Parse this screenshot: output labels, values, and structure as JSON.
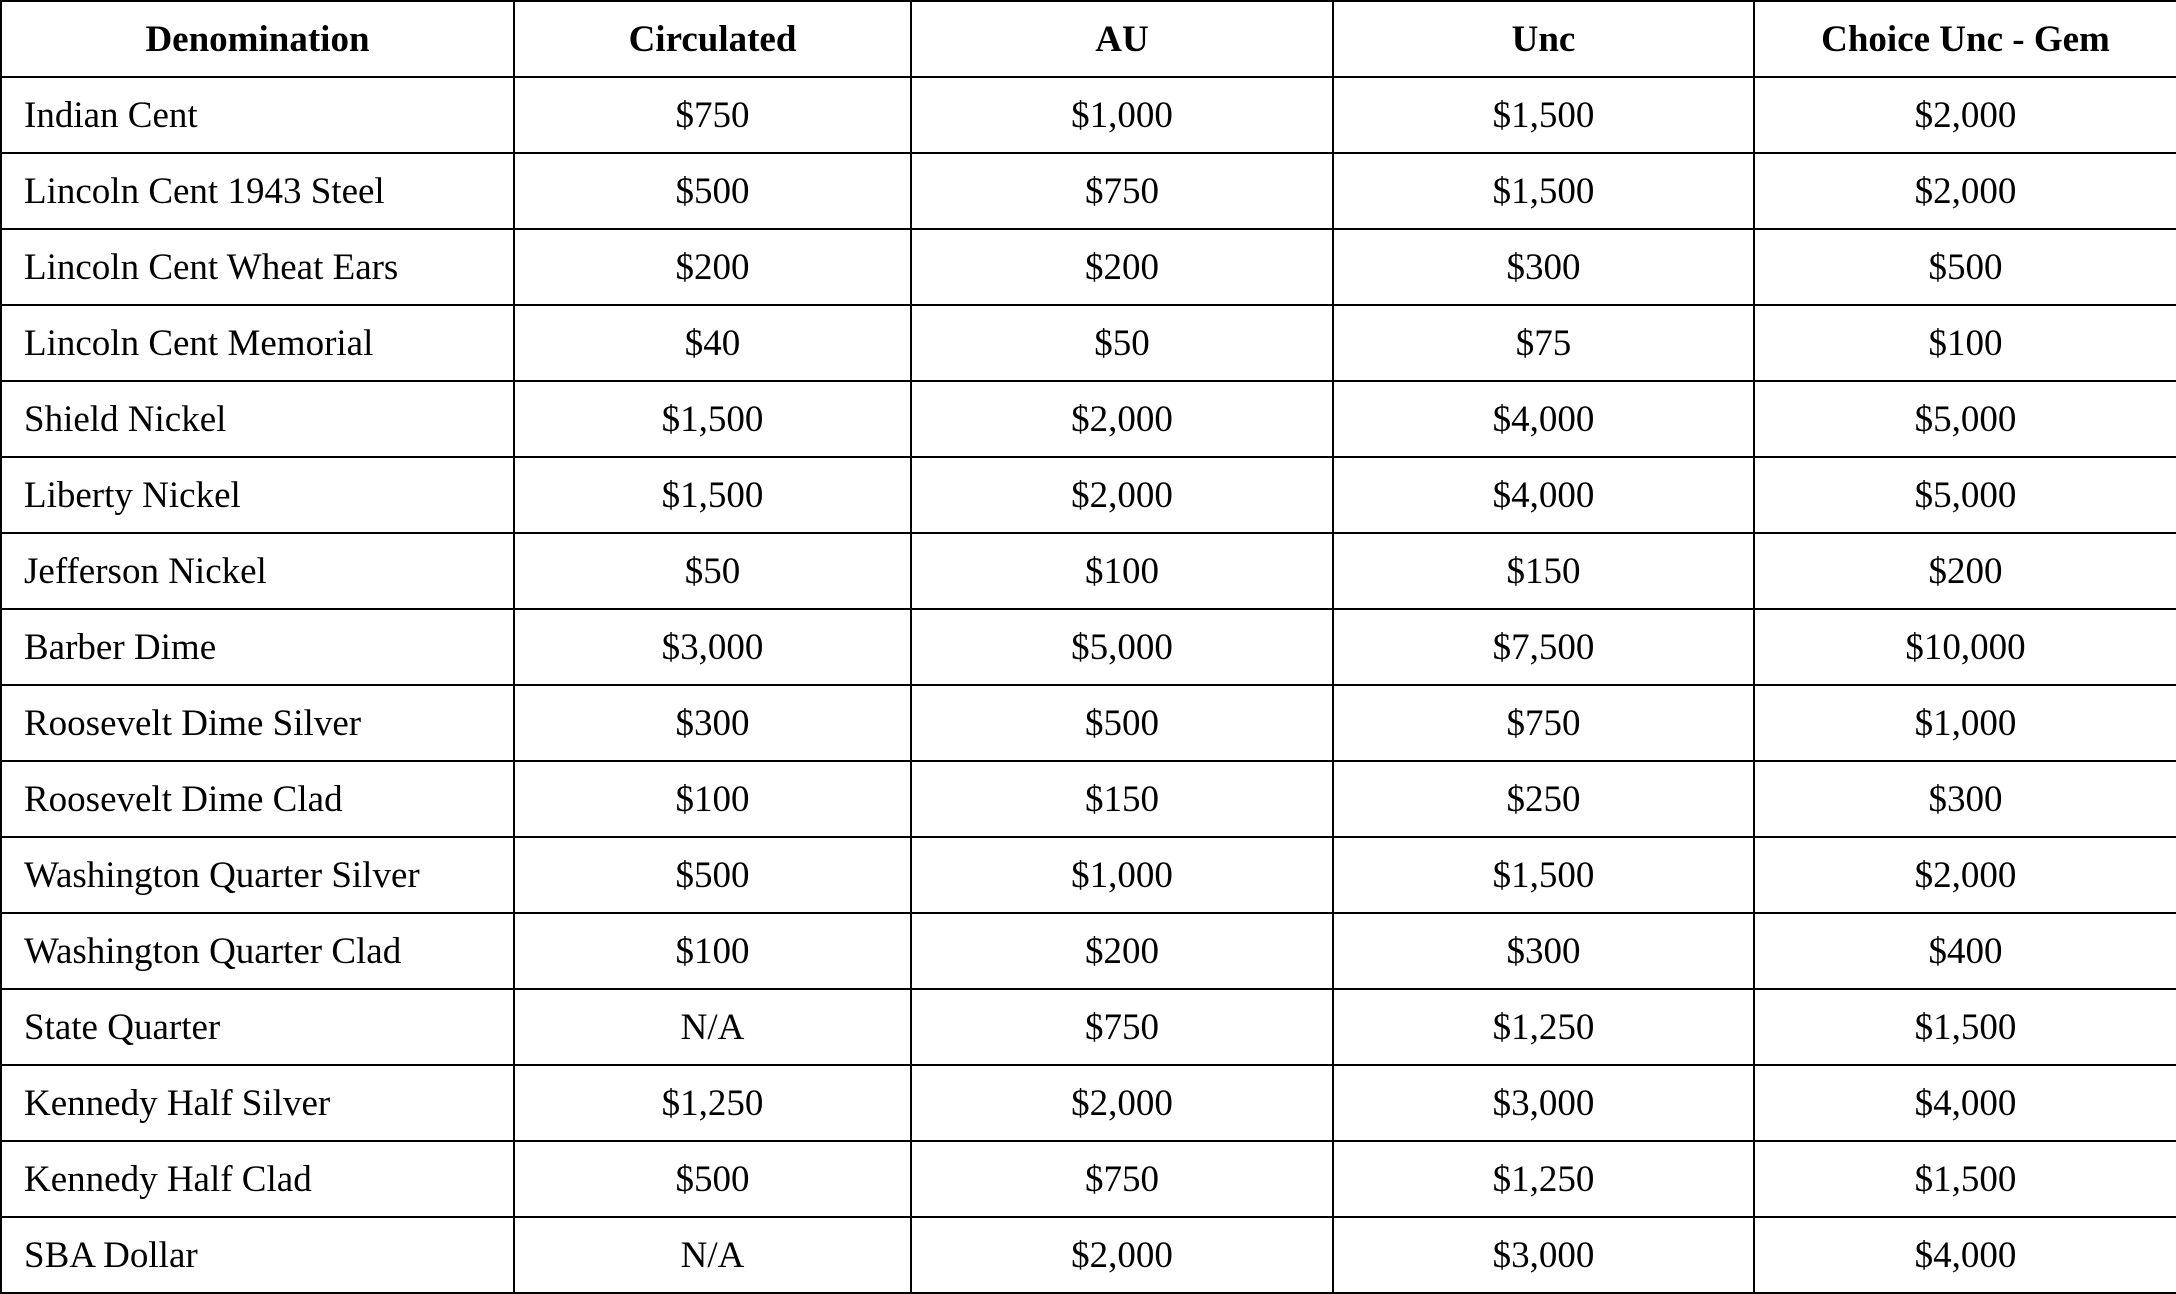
{
  "table": {
    "headers": [
      "Denomination",
      "Circulated",
      "AU",
      "Unc",
      "Choice Unc - Gem"
    ],
    "rows": [
      [
        "Indian Cent",
        "$750",
        "$1,000",
        "$1,500",
        "$2,000"
      ],
      [
        "Lincoln Cent 1943 Steel",
        "$500",
        "$750",
        "$1,500",
        "$2,000"
      ],
      [
        "Lincoln Cent Wheat Ears",
        "$200",
        "$200",
        "$300",
        "$500"
      ],
      [
        "Lincoln Cent Memorial",
        "$40",
        "$50",
        "$75",
        "$100"
      ],
      [
        "Shield Nickel",
        "$1,500",
        "$2,000",
        "$4,000",
        "$5,000"
      ],
      [
        "Liberty Nickel",
        "$1,500",
        "$2,000",
        "$4,000",
        "$5,000"
      ],
      [
        "Jefferson Nickel",
        "$50",
        "$100",
        "$150",
        "$200"
      ],
      [
        "Barber Dime",
        "$3,000",
        "$5,000",
        "$7,500",
        "$10,000"
      ],
      [
        "Roosevelt Dime Silver",
        "$300",
        "$500",
        "$750",
        "$1,000"
      ],
      [
        "Roosevelt Dime Clad",
        "$100",
        "$150",
        "$250",
        "$300"
      ],
      [
        "Washington Quarter Silver",
        "$500",
        "$1,000",
        "$1,500",
        "$2,000"
      ],
      [
        "Washington Quarter Clad",
        "$100",
        "$200",
        "$300",
        "$400"
      ],
      [
        "State Quarter",
        "N/A",
        "$750",
        "$1,250",
        "$1,500"
      ],
      [
        "Kennedy Half Silver",
        "$1,250",
        "$2,000",
        "$3,000",
        "$4,000"
      ],
      [
        "Kennedy Half Clad",
        "$500",
        "$750",
        "$1,250",
        "$1,500"
      ],
      [
        "SBA Dollar",
        "N/A",
        "$2,000",
        "$3,000",
        "$4,000"
      ]
    ]
  }
}
